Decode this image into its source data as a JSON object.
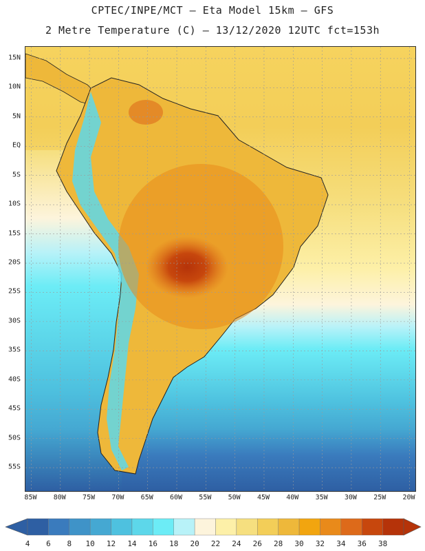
{
  "header": {
    "line1": "CPTEC/INPE/MCT –  Eta Model 15km – GFS",
    "line2": "2 Metre Temperature (C) – 13/12/2020 12UTC fct=153h"
  },
  "map": {
    "lon_range": [
      -86,
      -19
    ],
    "lat_range": [
      -59,
      17
    ],
    "lat_ticks": [
      "15N",
      "10N",
      "5N",
      "EQ",
      "5S",
      "10S",
      "15S",
      "20S",
      "25S",
      "30S",
      "35S",
      "40S",
      "45S",
      "50S",
      "55S"
    ],
    "lon_ticks": [
      "85W",
      "80W",
      "75W",
      "70W",
      "65W",
      "60W",
      "55W",
      "50W",
      "45W",
      "40W",
      "35W",
      "30W",
      "25W",
      "20W"
    ]
  },
  "colorbar": {
    "labels": [
      "4",
      "6",
      "8",
      "10",
      "12",
      "14",
      "16",
      "18",
      "20",
      "22",
      "24",
      "26",
      "28",
      "30",
      "32",
      "34",
      "36",
      "38"
    ],
    "colors": [
      "#2e5fa3",
      "#3a7bbd",
      "#3f93c8",
      "#45a8d2",
      "#4ec1df",
      "#5dd7ea",
      "#6cecf6",
      "#b8f2f8",
      "#fdf4dc",
      "#fdf0a8",
      "#f6df7f",
      "#f3ce58",
      "#eeb83a",
      "#f2a50f",
      "#e98a1a",
      "#dd6a1a",
      "#c7470d",
      "#b53309"
    ]
  }
}
